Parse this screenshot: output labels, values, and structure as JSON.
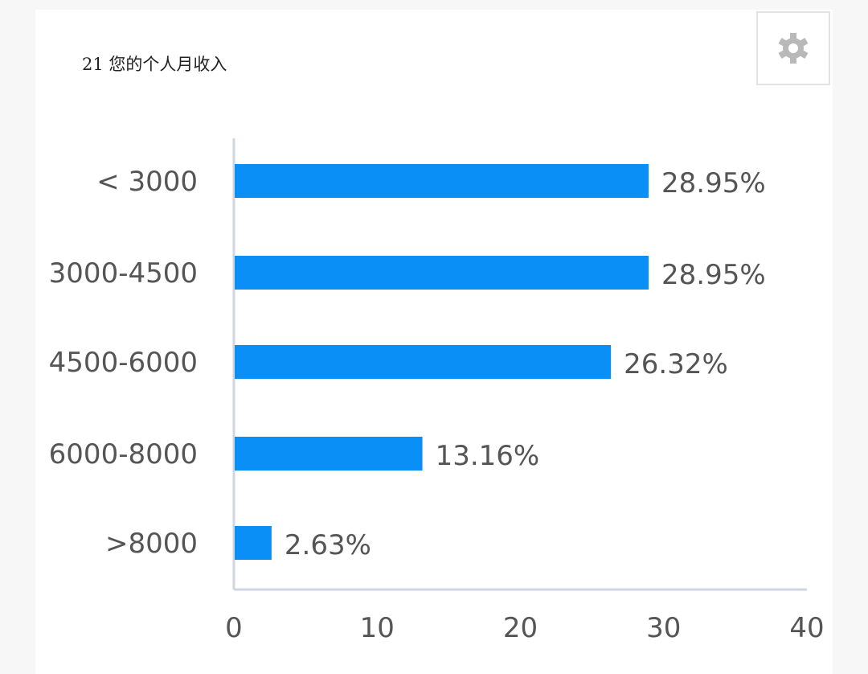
{
  "header": {
    "title": "21 您的个人月收入",
    "settings_icon": "gear-icon"
  },
  "colors": {
    "bar": "#0a8ff7",
    "axis": "#cfd6e2",
    "text": "#555555"
  },
  "chart_data": {
    "type": "bar",
    "orientation": "horizontal",
    "title": "21 您的个人月收入",
    "categories": [
      "< 3000",
      "3000-4500",
      "4500-6000",
      "6000-8000",
      ">8000"
    ],
    "values": [
      28.95,
      28.95,
      26.32,
      13.16,
      2.63
    ],
    "value_labels": [
      "28.95%",
      "28.95%",
      "26.32%",
      "13.16%",
      "2.63%"
    ],
    "xlim": [
      0,
      40
    ],
    "xticks": [
      0,
      10,
      20,
      30,
      40
    ],
    "xlabel": "",
    "ylabel": "",
    "grid": false,
    "legend": false
  }
}
